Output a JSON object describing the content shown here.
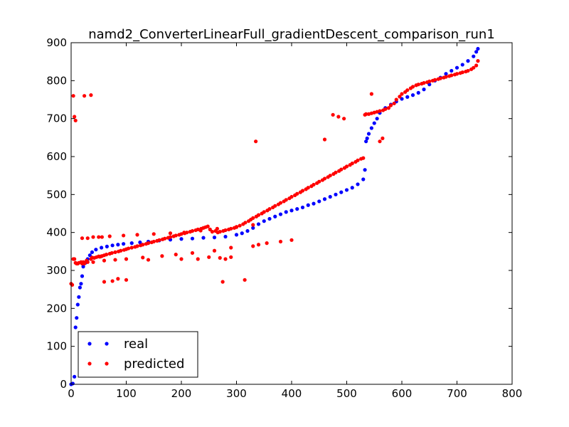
{
  "chart_data": {
    "type": "scatter",
    "title": "namd2_ConverterLinearFull_gradientDescent_comparison_run1",
    "xlabel": "",
    "ylabel": "",
    "xlim": [
      0,
      800
    ],
    "ylim": [
      0,
      900
    ],
    "xticks": [
      0,
      100,
      200,
      300,
      400,
      500,
      600,
      700,
      800
    ],
    "yticks": [
      0,
      100,
      200,
      300,
      400,
      500,
      600,
      700,
      800,
      900
    ],
    "grid": false,
    "legend_position": "lower-left",
    "series": [
      {
        "name": "real",
        "color": "#0000ff",
        "x": [
          0,
          3,
          6,
          8,
          10,
          12,
          14,
          16,
          18,
          20,
          22,
          26,
          30,
          34,
          38,
          45,
          55,
          65,
          75,
          85,
          95,
          110,
          125,
          140,
          160,
          180,
          200,
          220,
          240,
          260,
          280,
          300,
          310,
          320,
          330,
          340,
          350,
          360,
          370,
          380,
          390,
          400,
          410,
          420,
          430,
          440,
          450,
          460,
          470,
          480,
          490,
          500,
          510,
          520,
          530,
          533,
          535,
          537,
          540,
          545,
          550,
          555,
          560,
          570,
          580,
          590,
          600,
          610,
          620,
          630,
          640,
          650,
          660,
          670,
          680,
          690,
          700,
          710,
          720,
          730,
          735,
          738
        ],
        "y": [
          0,
          2,
          20,
          150,
          175,
          210,
          230,
          255,
          265,
          285,
          310,
          320,
          330,
          340,
          348,
          355,
          360,
          363,
          366,
          368,
          370,
          372,
          374,
          376,
          379,
          381,
          383,
          384,
          386,
          387,
          389,
          394,
          398,
          404,
          412,
          422,
          430,
          436,
          442,
          448,
          454,
          458,
          462,
          466,
          472,
          476,
          482,
          488,
          494,
          500,
          506,
          512,
          518,
          527,
          540,
          565,
          640,
          648,
          660,
          675,
          688,
          700,
          715,
          728,
          737,
          745,
          752,
          757,
          762,
          768,
          777,
          790,
          800,
          808,
          818,
          826,
          834,
          842,
          852,
          864,
          876,
          884
        ]
      },
      {
        "name": "predicted",
        "color": "#ff0000",
        "x": [
          0,
          2,
          4,
          6,
          8,
          10,
          12,
          14,
          18,
          20,
          22,
          24,
          28,
          30,
          36,
          38,
          42,
          46,
          50,
          52,
          54,
          56,
          60,
          64,
          70,
          74,
          80,
          86,
          90,
          96,
          100,
          104,
          110,
          116,
          120,
          126,
          130,
          136,
          140,
          146,
          150,
          156,
          160,
          166,
          170,
          176,
          180,
          186,
          190,
          196,
          200,
          206,
          210,
          216,
          220,
          226,
          230,
          236,
          240,
          244,
          248,
          252,
          256,
          262,
          266,
          270,
          276,
          280,
          286,
          290,
          296,
          300,
          306,
          312,
          316,
          322,
          326,
          330,
          336,
          340,
          346,
          350,
          356,
          360,
          366,
          370,
          376,
          380,
          386,
          390,
          396,
          400,
          406,
          410,
          416,
          420,
          426,
          430,
          436,
          440,
          446,
          450,
          456,
          460,
          466,
          470,
          476,
          480,
          486,
          490,
          496,
          500,
          506,
          510,
          516,
          520,
          526,
          530,
          533,
          535,
          540,
          545,
          550,
          555,
          560,
          566,
          570,
          576,
          580,
          586,
          590,
          596,
          600,
          606,
          610,
          616,
          620,
          626,
          630,
          636,
          640,
          646,
          650,
          656,
          660,
          666,
          670,
          676,
          680,
          686,
          690,
          696,
          700,
          706,
          710,
          716,
          720,
          726,
          730,
          735,
          738,
          4,
          6,
          8,
          24,
          36,
          50,
          56,
          60,
          75,
          85,
          100,
          140,
          200,
          230,
          250,
          270,
          275,
          280,
          290,
          315,
          335,
          460,
          475,
          485,
          495,
          545,
          560,
          565,
          20,
          30,
          40,
          70,
          95,
          120,
          150,
          180,
          205,
          235,
          265,
          300,
          330,
          40,
          60,
          80,
          100,
          130,
          165,
          190,
          220,
          260,
          290,
          330,
          340,
          355,
          380,
          400
        ],
        "y": [
          265,
          262,
          330,
          330,
          320,
          318,
          318,
          320,
          322,
          318,
          322,
          318,
          326,
          322,
          330,
          334,
          333,
          335,
          337,
          336,
          337,
          338,
          340,
          342,
          344,
          346,
          348,
          350,
          352,
          354,
          356,
          358,
          360,
          362,
          364,
          366,
          368,
          370,
          372,
          374,
          376,
          378,
          380,
          382,
          384,
          386,
          388,
          390,
          392,
          394,
          396,
          398,
          400,
          402,
          404,
          406,
          408,
          410,
          412,
          414,
          416,
          408,
          402,
          404,
          400,
          402,
          404,
          406,
          408,
          410,
          412,
          414,
          418,
          422,
          426,
          430,
          434,
          438,
          442,
          446,
          450,
          454,
          458,
          462,
          466,
          470,
          474,
          478,
          482,
          486,
          490,
          494,
          498,
          502,
          506,
          510,
          514,
          518,
          522,
          526,
          530,
          534,
          538,
          542,
          546,
          550,
          554,
          558,
          562,
          566,
          570,
          574,
          578,
          582,
          586,
          590,
          594,
          596,
          710,
          712,
          712,
          714,
          716,
          718,
          720,
          722,
          725,
          728,
          735,
          740,
          750,
          758,
          765,
          770,
          775,
          780,
          784,
          788,
          790,
          792,
          794,
          796,
          798,
          800,
          802,
          804,
          806,
          808,
          810,
          812,
          814,
          816,
          818,
          820,
          822,
          824,
          826,
          830,
          834,
          840,
          852,
          760,
          705,
          695,
          760,
          762,
          388,
          388,
          270,
          272,
          278,
          275,
          328,
          330,
          330,
          335,
          333,
          270,
          330,
          335,
          275,
          640,
          645,
          710,
          705,
          700,
          765,
          640,
          648,
          385,
          385,
          388,
          390,
          392,
          394,
          396,
          398,
          400,
          405,
          410,
          415,
          420,
          322,
          326,
          328,
          330,
          334,
          338,
          342,
          346,
          352,
          360,
          364,
          368,
          372,
          376,
          380
        ]
      }
    ]
  }
}
